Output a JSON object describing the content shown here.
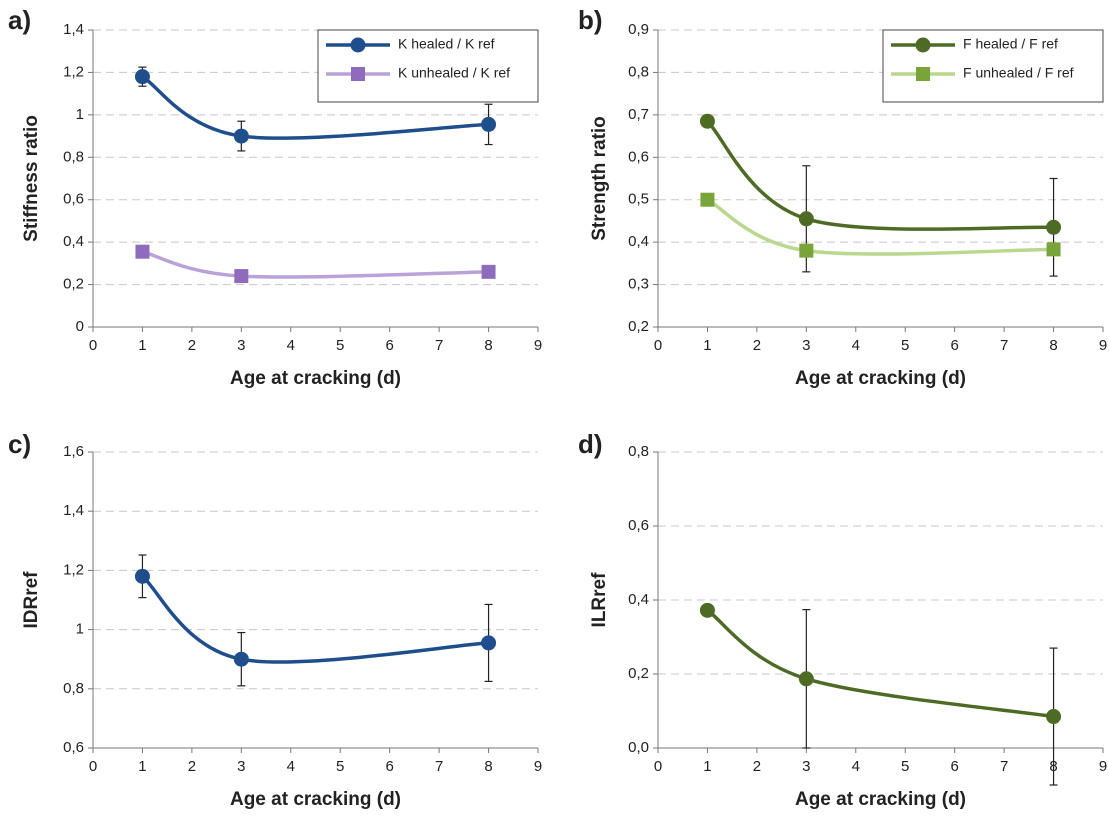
{
  "chart_data": [
    {
      "type": "line",
      "panel_label": "a)",
      "ylabel": "Stiffness ratio",
      "xlabel": "Age at cracking (d)",
      "x": [
        1,
        3,
        8
      ],
      "xlim": [
        0,
        9
      ],
      "xticks": [
        0,
        1,
        2,
        3,
        4,
        5,
        6,
        7,
        8,
        9
      ],
      "ylim": [
        0,
        1.4
      ],
      "yticks": [
        0,
        {
          "value": 0.2,
          "label": "0,2"
        },
        {
          "value": 0.4,
          "label": "0,4"
        },
        {
          "value": 0.6,
          "label": "0,6"
        },
        {
          "value": 0.8,
          "label": "0,8"
        },
        1,
        {
          "value": 1.2,
          "label": "1,2"
        },
        {
          "value": 1.4,
          "label": "1,4"
        }
      ],
      "grid": true,
      "legend": "upper right",
      "series": [
        {
          "name": "K healed / K ref",
          "color": "#1f4e8c",
          "marker": "circle",
          "values": [
            1.18,
            0.9,
            0.955
          ],
          "errors": [
            0.045,
            0.07,
            0.095
          ]
        },
        {
          "name": "K unhealed / K ref",
          "color": "#8f6bbd",
          "line_color": "#b9a2d8",
          "marker": "square",
          "values": [
            0.355,
            0.24,
            0.26
          ]
        }
      ]
    },
    {
      "type": "line",
      "panel_label": "b)",
      "ylabel": "Strength ratio",
      "xlabel": "Age at cracking (d)",
      "x": [
        1,
        3,
        8
      ],
      "xlim": [
        0,
        9
      ],
      "xticks": [
        0,
        1,
        2,
        3,
        4,
        5,
        6,
        7,
        8,
        9
      ],
      "ylim": [
        0.2,
        0.9
      ],
      "yticks": [
        {
          "value": 0.2,
          "label": "0,2"
        },
        {
          "value": 0.3,
          "label": "0,3"
        },
        {
          "value": 0.4,
          "label": "0,4"
        },
        {
          "value": 0.5,
          "label": "0,5"
        },
        {
          "value": 0.6,
          "label": "0,6"
        },
        {
          "value": 0.7,
          "label": "0,7"
        },
        {
          "value": 0.8,
          "label": "0,8"
        },
        {
          "value": 0.9,
          "label": "0,9"
        }
      ],
      "grid": true,
      "legend": "upper right",
      "series": [
        {
          "name": "F healed / F ref",
          "color": "#4d6b24",
          "marker": "circle",
          "values": [
            0.685,
            0.455,
            0.435
          ],
          "errors": [
            null,
            0.125,
            0.115
          ]
        },
        {
          "name": "F unhealed / F ref",
          "color": "#79a43a",
          "line_color": "#b9d88e",
          "marker": "square",
          "values": [
            0.5,
            0.38,
            0.383
          ]
        }
      ]
    },
    {
      "type": "line",
      "panel_label": "c)",
      "ylabel": "IDRref",
      "xlabel": "Age at cracking (d)",
      "x": [
        1,
        3,
        8
      ],
      "xlim": [
        0,
        9
      ],
      "xticks": [
        0,
        1,
        2,
        3,
        4,
        5,
        6,
        7,
        8,
        9
      ],
      "ylim": [
        0.6,
        1.6
      ],
      "yticks": [
        {
          "value": 0.6,
          "label": "0,6"
        },
        {
          "value": 0.8,
          "label": "0,8"
        },
        1,
        {
          "value": 1.2,
          "label": "1,2"
        },
        {
          "value": 1.4,
          "label": "1,4"
        },
        {
          "value": 1.6,
          "label": "1,6"
        }
      ],
      "grid": true,
      "series": [
        {
          "color": "#1f4e8c",
          "marker": "circle",
          "values": [
            1.18,
            0.9,
            0.955
          ],
          "errors": [
            0.072,
            0.09,
            0.13
          ]
        }
      ]
    },
    {
      "type": "line",
      "panel_label": "d)",
      "ylabel": "ILRref",
      "xlabel": "Age at cracking (d)",
      "x": [
        1,
        3,
        8
      ],
      "xlim": [
        0,
        9
      ],
      "xticks": [
        0,
        1,
        2,
        3,
        4,
        5,
        6,
        7,
        8,
        9
      ],
      "ylim": [
        0,
        0.8
      ],
      "yticks": [
        {
          "value": 0,
          "label": "0,0"
        },
        {
          "value": 0.2,
          "label": "0,2"
        },
        {
          "value": 0.4,
          "label": "0,4"
        },
        {
          "value": 0.6,
          "label": "0,6"
        },
        {
          "value": 0.8,
          "label": "0,8"
        }
      ],
      "grid": true,
      "series": [
        {
          "color": "#4d6b24",
          "marker": "circle",
          "values": [
            0.372,
            0.187,
            0.085
          ],
          "errors": [
            0.012,
            0.187,
            0.185
          ]
        }
      ]
    }
  ]
}
